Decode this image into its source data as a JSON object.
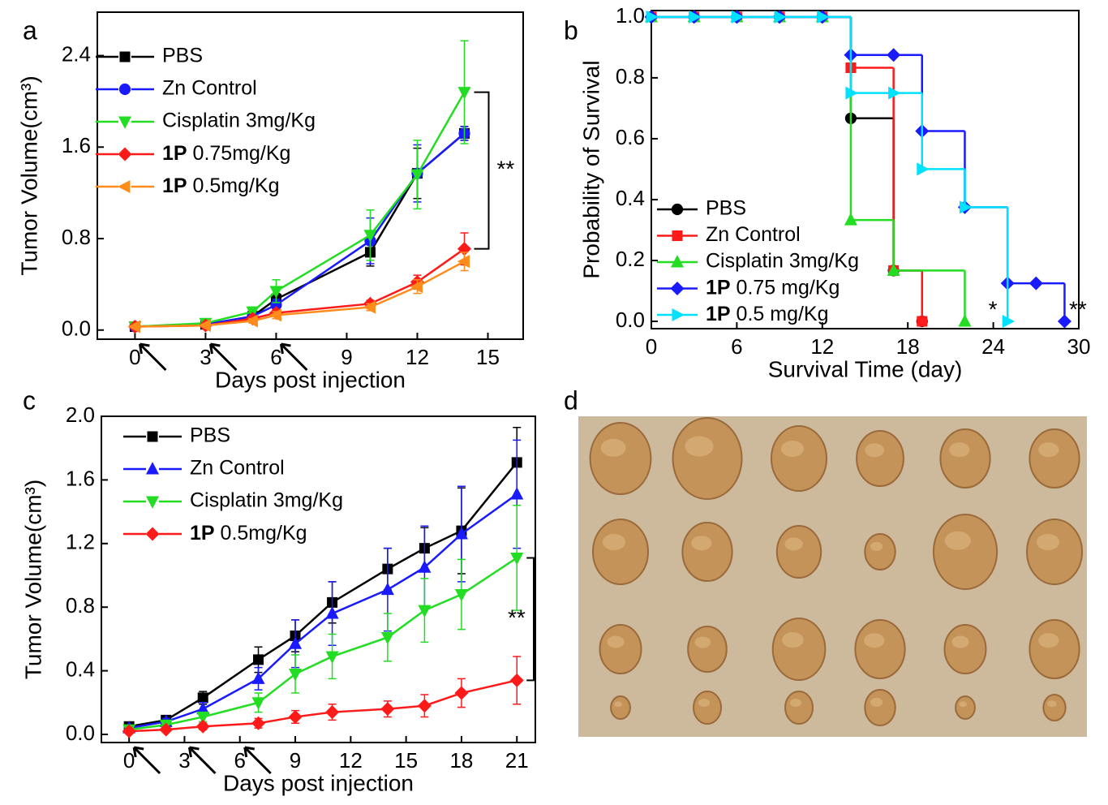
{
  "chart_data": [
    {
      "type": "line",
      "panel_label": "a",
      "x_label": "Days post injection",
      "y_label": "Tumor Volume(cm³)",
      "x": [
        0,
        3,
        5,
        6,
        10,
        12,
        14
      ],
      "xlim": [
        -1.6,
        16.5
      ],
      "xticks": [
        0,
        3,
        6,
        9,
        12,
        15
      ],
      "ylim": [
        -0.08,
        2.78
      ],
      "yticks": [
        {
          "value": 0,
          "label": "0.0"
        },
        0.8,
        1.6,
        2.4
      ],
      "arrows": [
        0,
        3,
        6
      ],
      "annotation": "**",
      "legend": "upper left",
      "series": [
        {
          "name": "PBS",
          "color": "#000000",
          "marker": "square",
          "values": [
            0.03,
            0.05,
            0.12,
            0.27,
            0.68,
            1.37,
            1.72
          ],
          "errors": [
            0.01,
            0.01,
            0.03,
            0.05,
            0.12,
            0.22,
            0.06
          ]
        },
        {
          "name": "Zn Control",
          "color": "#1a1aff",
          "marker": "circle",
          "values": [
            0.03,
            0.05,
            0.12,
            0.22,
            0.78,
            1.37,
            1.72
          ],
          "errors": [
            0.01,
            0.01,
            0.03,
            0.05,
            0.2,
            0.25,
            0.06
          ]
        },
        {
          "name": "Cisplatin 3mg/Kg",
          "color": "#22dd22",
          "marker": "tridown",
          "values": [
            0.03,
            0.06,
            0.16,
            0.34,
            0.83,
            1.36,
            2.08
          ],
          "errors": [
            0.01,
            0.01,
            0.04,
            0.1,
            0.22,
            0.3,
            0.45
          ]
        },
        {
          "name": "1P 0.75mg/Kg",
          "color": "#ff1a1a",
          "marker": "diamond",
          "values": [
            0.03,
            0.04,
            0.1,
            0.15,
            0.23,
            0.42,
            0.71
          ],
          "errors": [
            0.01,
            0.01,
            0.02,
            0.03,
            0.03,
            0.06,
            0.14
          ]
        },
        {
          "name": "1P 0.5mg/Kg",
          "color": "#ff8c1a",
          "marker": "trileft",
          "values": [
            0.03,
            0.04,
            0.08,
            0.13,
            0.2,
            0.38,
            0.6
          ],
          "errors": [
            0.01,
            0.01,
            0.02,
            0.03,
            0.03,
            0.06,
            0.08
          ]
        }
      ]
    },
    {
      "type": "step",
      "panel_label": "b",
      "x_label": "Survival Time (day)",
      "y_label": "Probability of Survival",
      "xlim": [
        0,
        30
      ],
      "xticks": [
        0,
        6,
        12,
        18,
        24,
        30
      ],
      "ylim": [
        -0.024,
        1.021
      ],
      "yticks": [
        {
          "value": 0,
          "label": "0.0"
        },
        {
          "value": 0.2,
          "label": "0.2"
        },
        {
          "value": 0.4,
          "label": "0.4"
        },
        {
          "value": 0.6,
          "label": "0.6"
        },
        {
          "value": 0.8,
          "label": "0.8"
        },
        {
          "value": 1,
          "label": "1.0"
        }
      ],
      "annotations": [
        "*",
        "**"
      ],
      "legend": "lower left",
      "series": [
        {
          "name": "PBS",
          "color": "#000000",
          "marker": "circle",
          "x": [
            0,
            3,
            6,
            9,
            12,
            14,
            17,
            19
          ],
          "values": [
            1,
            1,
            1,
            1,
            1,
            0.667,
            0.167,
            0
          ]
        },
        {
          "name": "Zn Control",
          "color": "#ff1a1a",
          "marker": "square",
          "x": [
            0,
            3,
            6,
            9,
            12,
            14,
            17,
            19
          ],
          "values": [
            1,
            1,
            1,
            1,
            1,
            0.833,
            0.167,
            0
          ]
        },
        {
          "name": "Cisplatin 3mg/Kg",
          "color": "#22dd22",
          "marker": "triup",
          "x": [
            0,
            3,
            6,
            9,
            12,
            14,
            17,
            22
          ],
          "values": [
            1,
            1,
            1,
            1,
            1,
            0.333,
            0.167,
            0
          ]
        },
        {
          "name": "1P 0.75 mg/Kg",
          "color": "#1a1aff",
          "marker": "diamond",
          "x": [
            0,
            3,
            6,
            9,
            12,
            14,
            17,
            19,
            22,
            25,
            27,
            29
          ],
          "values": [
            1,
            1,
            1,
            1,
            1,
            0.875,
            0.875,
            0.625,
            0.375,
            0.125,
            0.125,
            0
          ]
        },
        {
          "name": "1P 0.5 mg/Kg",
          "color": "#00e0ff",
          "marker": "triright",
          "x": [
            0,
            3,
            6,
            9,
            12,
            14,
            17,
            19,
            22,
            25
          ],
          "values": [
            1,
            1,
            1,
            1,
            1,
            0.75,
            0.75,
            0.5,
            0.375,
            0
          ]
        }
      ]
    },
    {
      "type": "line",
      "panel_label": "c",
      "x_label": "Days post injection",
      "y_label": "Tumor Volume(cm³)",
      "x": [
        0,
        2,
        4,
        7,
        9,
        11,
        14,
        16,
        18,
        21
      ],
      "xlim": [
        -1.5,
        22
      ],
      "xticks": [
        0,
        3,
        6,
        9,
        12,
        15,
        18,
        21
      ],
      "ylim": [
        -0.051,
        2.0
      ],
      "yticks": [
        {
          "value": 0,
          "label": "0.0"
        },
        0.4,
        0.8,
        1.2,
        1.6,
        {
          "value": 2,
          "label": "2.0"
        }
      ],
      "arrows": [
        0,
        3,
        6
      ],
      "annotation": "**",
      "legend": "upper left",
      "series": [
        {
          "name": "PBS",
          "color": "#000000",
          "marker": "square",
          "values": [
            0.05,
            0.09,
            0.23,
            0.47,
            0.62,
            0.83,
            1.04,
            1.17,
            1.28,
            1.71
          ],
          "errors": [
            0.02,
            0.02,
            0.04,
            0.08,
            0.1,
            0.13,
            0.13,
            0.13,
            0.27,
            0.22
          ]
        },
        {
          "name": "Zn Control",
          "color": "#1a1aff",
          "marker": "triup",
          "values": [
            0.04,
            0.08,
            0.16,
            0.35,
            0.57,
            0.76,
            0.91,
            1.05,
            1.26,
            1.51
          ],
          "errors": [
            0.01,
            0.02,
            0.04,
            0.07,
            0.15,
            0.2,
            0.26,
            0.26,
            0.3,
            0.34
          ]
        },
        {
          "name": "Cisplatin 3mg/Kg",
          "color": "#22dd22",
          "marker": "tridown",
          "values": [
            0.03,
            0.06,
            0.11,
            0.2,
            0.38,
            0.49,
            0.61,
            0.78,
            0.88,
            1.11
          ],
          "errors": [
            0.01,
            0.02,
            0.03,
            0.06,
            0.12,
            0.14,
            0.15,
            0.2,
            0.22,
            0.33
          ]
        },
        {
          "name": "1P 0.5mg/Kg",
          "color": "#ff1a1a",
          "marker": "diamond",
          "values": [
            0.02,
            0.03,
            0.05,
            0.07,
            0.11,
            0.14,
            0.16,
            0.18,
            0.26,
            0.34
          ],
          "errors": [
            0.01,
            0.01,
            0.02,
            0.03,
            0.04,
            0.05,
            0.05,
            0.07,
            0.09,
            0.15
          ]
        }
      ]
    }
  ],
  "photo": {
    "panel_label": "d"
  }
}
